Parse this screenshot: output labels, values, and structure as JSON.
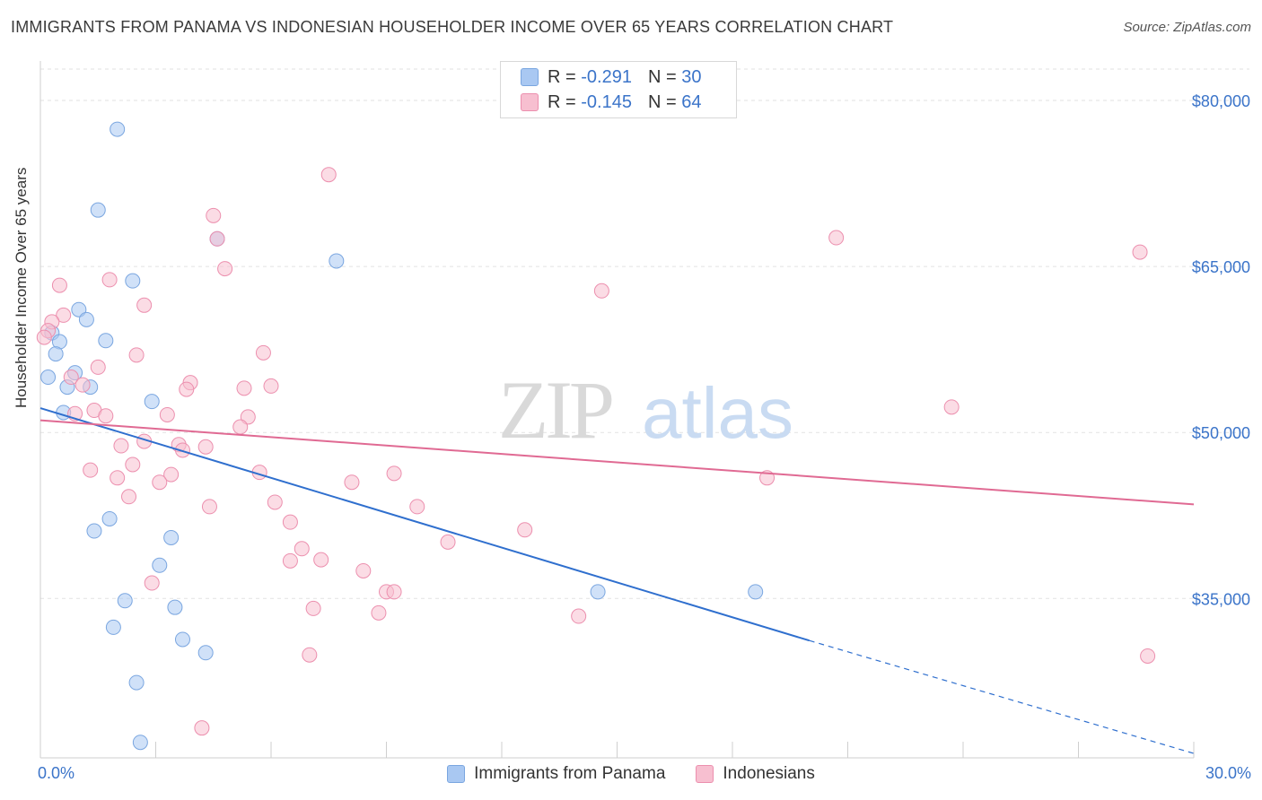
{
  "header": {
    "title": "IMMIGRANTS FROM PANAMA VS INDONESIAN HOUSEHOLDER INCOME OVER 65 YEARS CORRELATION CHART",
    "source": "Source: ZipAtlas.com"
  },
  "stats": {
    "rows": [
      {
        "r_label": "R =",
        "r_value": "-0.291",
        "n_label": "N =",
        "n_value": "30",
        "color": "#a9c8f2",
        "border": "#7aa6e0"
      },
      {
        "r_label": "R =",
        "r_value": "-0.145",
        "n_label": "N =",
        "n_value": "64",
        "color": "#f7bfd0",
        "border": "#ec8fae"
      }
    ]
  },
  "watermark": {
    "zip": "ZIP",
    "atlas": "atlas"
  },
  "chart_data": {
    "type": "scatter",
    "title": "IMMIGRANTS FROM PANAMA VS INDONESIAN HOUSEHOLDER INCOME OVER 65 YEARS CORRELATION CHART",
    "xlabel": "",
    "ylabel": "Householder Income Over 65 years",
    "xlim": [
      0,
      30
    ],
    "ylim": [
      20600,
      83000
    ],
    "x_tick_labels": [
      "0.0%",
      "30.0%"
    ],
    "y_ticks": [
      35000,
      50000,
      65000,
      80000
    ],
    "y_tick_labels": [
      "$35,000",
      "$50,000",
      "$65,000",
      "$80,000"
    ],
    "grid": true,
    "legend_position": "bottom",
    "series": [
      {
        "name": "Immigrants from Panama",
        "color": "#a9c8f2",
        "stroke": "#7aa6e0",
        "line_color": "#2f6fce",
        "trend": {
          "x0": 0.0,
          "y0": 52200,
          "x1": 20.0,
          "y1": 31200,
          "dash_to_x": 30.0,
          "dash_to_y": 21000
        },
        "points": [
          {
            "x": 2.0,
            "y": 77400
          },
          {
            "x": 1.5,
            "y": 70100
          },
          {
            "x": 4.6,
            "y": 67500
          },
          {
            "x": 7.7,
            "y": 65500
          },
          {
            "x": 2.4,
            "y": 63700
          },
          {
            "x": 1.0,
            "y": 61100
          },
          {
            "x": 1.2,
            "y": 60200
          },
          {
            "x": 0.3,
            "y": 59000
          },
          {
            "x": 0.5,
            "y": 58200
          },
          {
            "x": 1.7,
            "y": 58300
          },
          {
            "x": 0.4,
            "y": 57100
          },
          {
            "x": 0.2,
            "y": 55000
          },
          {
            "x": 0.9,
            "y": 55400
          },
          {
            "x": 0.7,
            "y": 54100
          },
          {
            "x": 1.3,
            "y": 54100
          },
          {
            "x": 2.9,
            "y": 52800
          },
          {
            "x": 0.6,
            "y": 51800
          },
          {
            "x": 1.8,
            "y": 42200
          },
          {
            "x": 1.4,
            "y": 41100
          },
          {
            "x": 3.4,
            "y": 40500
          },
          {
            "x": 3.1,
            "y": 38000
          },
          {
            "x": 2.2,
            "y": 34800
          },
          {
            "x": 3.5,
            "y": 34200
          },
          {
            "x": 1.9,
            "y": 32400
          },
          {
            "x": 3.7,
            "y": 31300
          },
          {
            "x": 4.3,
            "y": 30100
          },
          {
            "x": 2.5,
            "y": 27400
          },
          {
            "x": 2.6,
            "y": 22000
          },
          {
            "x": 14.5,
            "y": 35600
          },
          {
            "x": 18.6,
            "y": 35600
          }
        ]
      },
      {
        "name": "Indonesians",
        "color": "#f7bfd0",
        "stroke": "#ec8fae",
        "line_color": "#e06a93",
        "trend": {
          "x0": 0.0,
          "y0": 51100,
          "x1": 30.0,
          "y1": 43500
        },
        "points": [
          {
            "x": 7.5,
            "y": 73300
          },
          {
            "x": 4.5,
            "y": 69600
          },
          {
            "x": 4.6,
            "y": 67500
          },
          {
            "x": 4.8,
            "y": 64800
          },
          {
            "x": 2.7,
            "y": 61500
          },
          {
            "x": 0.5,
            "y": 63300
          },
          {
            "x": 1.8,
            "y": 63800
          },
          {
            "x": 0.6,
            "y": 60600
          },
          {
            "x": 0.3,
            "y": 60000
          },
          {
            "x": 0.2,
            "y": 59200
          },
          {
            "x": 0.1,
            "y": 58600
          },
          {
            "x": 2.5,
            "y": 57000
          },
          {
            "x": 5.8,
            "y": 57200
          },
          {
            "x": 1.5,
            "y": 55900
          },
          {
            "x": 0.8,
            "y": 55000
          },
          {
            "x": 1.1,
            "y": 54300
          },
          {
            "x": 3.9,
            "y": 54500
          },
          {
            "x": 3.8,
            "y": 53900
          },
          {
            "x": 5.3,
            "y": 54000
          },
          {
            "x": 6.0,
            "y": 54200
          },
          {
            "x": 1.4,
            "y": 52000
          },
          {
            "x": 0.9,
            "y": 51700
          },
          {
            "x": 1.7,
            "y": 51500
          },
          {
            "x": 3.3,
            "y": 51600
          },
          {
            "x": 5.4,
            "y": 51400
          },
          {
            "x": 5.2,
            "y": 50500
          },
          {
            "x": 2.7,
            "y": 49200
          },
          {
            "x": 2.1,
            "y": 48800
          },
          {
            "x": 3.6,
            "y": 48900
          },
          {
            "x": 3.7,
            "y": 48400
          },
          {
            "x": 4.3,
            "y": 48700
          },
          {
            "x": 2.4,
            "y": 47100
          },
          {
            "x": 1.3,
            "y": 46600
          },
          {
            "x": 3.4,
            "y": 46200
          },
          {
            "x": 5.7,
            "y": 46400
          },
          {
            "x": 9.2,
            "y": 46300
          },
          {
            "x": 2.0,
            "y": 45900
          },
          {
            "x": 3.1,
            "y": 45500
          },
          {
            "x": 8.1,
            "y": 45500
          },
          {
            "x": 2.3,
            "y": 44200
          },
          {
            "x": 6.1,
            "y": 43700
          },
          {
            "x": 4.4,
            "y": 43300
          },
          {
            "x": 9.8,
            "y": 43300
          },
          {
            "x": 6.5,
            "y": 41900
          },
          {
            "x": 12.6,
            "y": 41200
          },
          {
            "x": 10.6,
            "y": 40100
          },
          {
            "x": 6.8,
            "y": 39500
          },
          {
            "x": 6.5,
            "y": 38400
          },
          {
            "x": 7.3,
            "y": 38500
          },
          {
            "x": 8.4,
            "y": 37500
          },
          {
            "x": 2.9,
            "y": 36400
          },
          {
            "x": 9.0,
            "y": 35600
          },
          {
            "x": 9.2,
            "y": 35600
          },
          {
            "x": 7.1,
            "y": 34100
          },
          {
            "x": 8.8,
            "y": 33700
          },
          {
            "x": 14.0,
            "y": 33400
          },
          {
            "x": 7.0,
            "y": 29900
          },
          {
            "x": 4.2,
            "y": 23300
          },
          {
            "x": 14.6,
            "y": 62800
          },
          {
            "x": 20.7,
            "y": 67600
          },
          {
            "x": 23.7,
            "y": 52300
          },
          {
            "x": 18.9,
            "y": 45900
          },
          {
            "x": 28.6,
            "y": 66300
          },
          {
            "x": 28.8,
            "y": 29800
          }
        ]
      }
    ]
  }
}
